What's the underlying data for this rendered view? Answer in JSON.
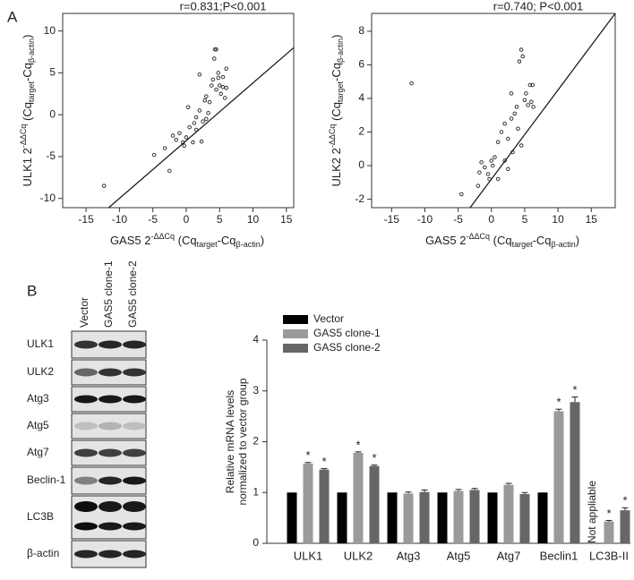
{
  "panel_labels": [
    "A",
    "B"
  ],
  "blot": {
    "lanes": [
      "Vector",
      "GAS5 clone-1",
      "GAS5 clone-2"
    ],
    "rows": [
      "ULK1",
      "ULK2",
      "Atg3",
      "Atg5",
      "Atg7",
      "Beclin-1",
      "LC3B",
      "β-actin"
    ]
  },
  "chart_data": [
    {
      "type": "scatter",
      "title": "r=0.831;P<0.001",
      "xlabel": [
        {
          "text": "GAS5 2"
        },
        {
          "text": "-ΔΔCq",
          "script": "sup"
        },
        {
          "text": " (Cq"
        },
        {
          "text": "target",
          "script": "sub"
        },
        {
          "text": "-Cq"
        },
        {
          "text": "β-actin",
          "script": "sub"
        },
        {
          "text": ")"
        }
      ],
      "ylabel": [
        {
          "text": "ULK1 2"
        },
        {
          "text": "-ΔΔCq",
          "script": "sup"
        },
        {
          "text": " (Cq"
        },
        {
          "text": "target",
          "script": "sub"
        },
        {
          "text": "-Cq"
        },
        {
          "text": "β-actin",
          "script": "sub"
        },
        {
          "text": ")"
        }
      ],
      "x": [
        -12.3,
        -4.8,
        -3.2,
        -2.5,
        -2,
        -1.5,
        -1,
        -0.5,
        -0.3,
        0,
        0.3,
        0.5,
        1,
        1.2,
        1.5,
        2,
        2,
        2.3,
        2.5,
        2.8,
        3,
        3,
        3.3,
        3.5,
        3.8,
        4,
        4.2,
        4.3,
        4.5,
        4.5,
        4.8,
        5,
        5.2,
        5.5,
        5.5,
        5.8,
        6,
        6,
        4.8,
        1.5
      ],
      "y": [
        -8.5,
        -4.8,
        -4.0,
        -6.7,
        -2.5,
        -3.0,
        -2.2,
        -3.3,
        -3.7,
        -2.7,
        0.9,
        -1.5,
        -3.3,
        -1.0,
        -0.3,
        0.5,
        4.8,
        -3.2,
        -0.8,
        1.7,
        2.2,
        -0.5,
        0.2,
        1.5,
        3.5,
        4.2,
        6.7,
        7.8,
        7.8,
        3.0,
        5.0,
        3.5,
        2.5,
        4.5,
        3.3,
        2.0,
        5.5,
        3.2,
        4.4,
        -1.8
      ],
      "fit": {
        "x": [
          -11.6,
          16.1
        ],
        "y": [
          -11.1,
          8.0
        ]
      },
      "xlim": [
        -18.5,
        16.1
      ],
      "ylim": [
        -11.1,
        12.1
      ],
      "xticks": [
        -15,
        -10,
        -5,
        0,
        5,
        10,
        15
      ],
      "yticks": [
        -10,
        -5,
        0,
        5,
        10
      ]
    },
    {
      "type": "scatter",
      "title": "r=0.740; P<0.001",
      "xlabel": [
        {
          "text": "GAS5 2"
        },
        {
          "text": "-ΔΔCq",
          "script": "sup"
        },
        {
          "text": " (Cq"
        },
        {
          "text": "target",
          "script": "sub"
        },
        {
          "text": "-Cq"
        },
        {
          "text": "β-actin",
          "script": "sub"
        },
        {
          "text": ")"
        }
      ],
      "ylabel": [
        {
          "text": "ULK2 2"
        },
        {
          "text": "-ΔΔCq",
          "script": "sup"
        },
        {
          "text": " (Cq"
        },
        {
          "text": "target",
          "script": "sub"
        },
        {
          "text": "-Cq"
        },
        {
          "text": "β-actin",
          "script": "sub"
        },
        {
          "text": ")"
        }
      ],
      "x": [
        -12,
        -4.5,
        -2,
        -1.8,
        -1.5,
        -1,
        -0.5,
        -0.3,
        0,
        0.2,
        0.5,
        1,
        1,
        1.5,
        2,
        2,
        2.5,
        2.5,
        3,
        3,
        3.2,
        3.5,
        3.8,
        4,
        4.2,
        4.5,
        4.5,
        4.7,
        5.2,
        5.5,
        5.8,
        6,
        6.2,
        6.3,
        5
      ],
      "y": [
        4.9,
        -1.7,
        -1.2,
        -0.4,
        0.2,
        -0.1,
        -0.5,
        -0.8,
        0.3,
        0,
        0.5,
        -0.8,
        1.4,
        2.0,
        0.3,
        2.5,
        -0.2,
        1.6,
        2.8,
        4.3,
        0.8,
        3.1,
        3.5,
        2.2,
        6.2,
        6.9,
        1.2,
        6.5,
        4.3,
        3.6,
        4.8,
        3.8,
        4.8,
        3.5,
        3.9
      ],
      "fit": {
        "x": [
          -3.2,
          18.6
        ],
        "y": [
          -2.5,
          9.06
        ]
      },
      "xlim": [
        -18,
        18.6
      ],
      "ylim": [
        -2.5,
        9.06
      ],
      "xticks": [
        -15,
        -10,
        -5,
        0,
        5,
        10,
        15
      ],
      "yticks": [
        -2,
        0,
        2,
        4,
        6,
        8
      ]
    },
    {
      "type": "bar",
      "ylabel": [
        "Relative mRNA levels",
        "normalized to vector group"
      ],
      "categories": [
        "ULK1",
        "ULK2",
        "Atg3",
        "Atg5",
        "Atg7",
        "Beclin1",
        "LC3B-II"
      ],
      "na_label": "Not appliable",
      "series": [
        {
          "name": "Vector",
          "color": "#000000",
          "values": [
            1,
            1,
            1,
            1,
            1,
            1,
            null
          ],
          "errors": [
            0,
            0,
            0,
            0,
            0,
            0,
            null
          ],
          "significance": [
            null,
            null,
            null,
            null,
            null,
            null,
            null
          ]
        },
        {
          "name": "GAS5 clone-1",
          "color": "#9a9a9a",
          "values": [
            1.57,
            1.78,
            0.98,
            1.03,
            1.15,
            2.6,
            0.43
          ],
          "errors": [
            0.02,
            0.02,
            0.03,
            0.03,
            0.03,
            0.04,
            0.02
          ],
          "significance": [
            "*",
            "*",
            null,
            null,
            null,
            "*",
            "*"
          ]
        },
        {
          "name": "GAS5 clone-2",
          "color": "#666666",
          "values": [
            1.45,
            1.52,
            1.01,
            1.05,
            0.97,
            2.78,
            0.65
          ],
          "errors": [
            0.02,
            0.02,
            0.04,
            0.03,
            0.03,
            0.1,
            0.05
          ],
          "significance": [
            "*",
            "*",
            null,
            null,
            null,
            "*",
            "*"
          ]
        }
      ],
      "ylim": [
        0,
        4
      ],
      "yticks": [
        0,
        1,
        2,
        3,
        4
      ]
    }
  ]
}
